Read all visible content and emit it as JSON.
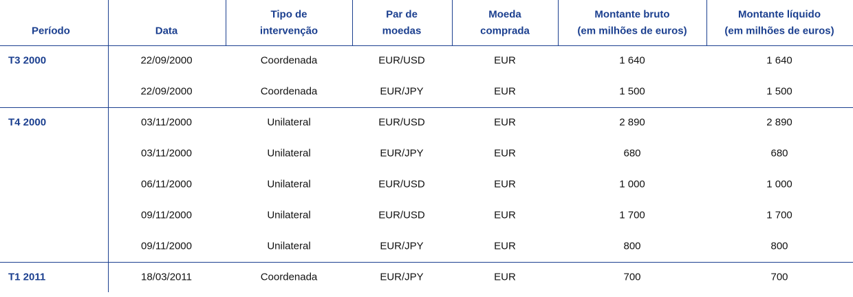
{
  "table": {
    "headers": [
      [
        "Período"
      ],
      [
        "Data"
      ],
      [
        "Tipo de",
        "intervenção"
      ],
      [
        "Par de",
        "moedas"
      ],
      [
        "Moeda",
        "comprada"
      ],
      [
        "Montante bruto",
        "(em milhões de euros)"
      ],
      [
        "Montante líquido",
        "(em milhões de euros)"
      ]
    ],
    "groups": [
      {
        "period": "T3 2000",
        "rows": [
          [
            "22/09/2000",
            "Coordenada",
            "EUR/USD",
            "EUR",
            "1 640",
            "1 640"
          ],
          [
            "22/09/2000",
            "Coordenada",
            "EUR/JPY",
            "EUR",
            "1 500",
            "1 500"
          ]
        ]
      },
      {
        "period": "T4 2000",
        "rows": [
          [
            "03/11/2000",
            "Unilateral",
            "EUR/USD",
            "EUR",
            "2 890",
            "2 890"
          ],
          [
            "03/11/2000",
            "Unilateral",
            "EUR/JPY",
            "EUR",
            "680",
            "680"
          ],
          [
            "06/11/2000",
            "Unilateral",
            "EUR/USD",
            "EUR",
            "1 000",
            "1 000"
          ],
          [
            "09/11/2000",
            "Unilateral",
            "EUR/USD",
            "EUR",
            "1 700",
            "1 700"
          ],
          [
            "09/11/2000",
            "Unilateral",
            "EUR/JPY",
            "EUR",
            "800",
            "800"
          ]
        ]
      },
      {
        "period": "T1 2011",
        "rows": [
          [
            "18/03/2011",
            "Coordenada",
            "EUR/JPY",
            "EUR",
            "700",
            "700"
          ]
        ]
      }
    ]
  }
}
